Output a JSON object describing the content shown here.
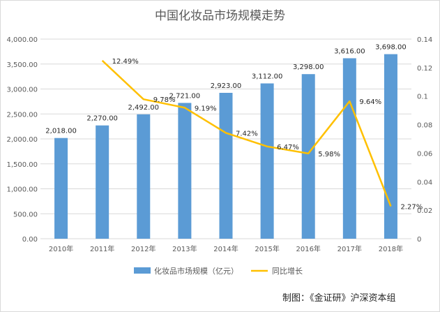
{
  "chart_data": {
    "type": "bar",
    "title": "中国化妆品市场规模走势",
    "categories": [
      "2010年",
      "2011年",
      "2012年",
      "2013年",
      "2014年",
      "2015年",
      "2016年",
      "2017年",
      "2018年"
    ],
    "series": [
      {
        "name": "化妆品市场规模（亿元）",
        "type": "bar",
        "axis": "left",
        "color": "#5b9bd5",
        "values": [
          2018.0,
          2270.0,
          2492.0,
          2721.0,
          2923.0,
          3112.0,
          3298.0,
          3616.0,
          3698.0
        ],
        "labels": [
          "2,018.00",
          "2,270.00",
          "2,492.00",
          "2,721.00",
          "2,923.00",
          "3,112.00",
          "3,298.00",
          "3,616.00",
          "3,698.00"
        ]
      },
      {
        "name": "同比增长",
        "type": "line",
        "axis": "right",
        "color": "#ffc000",
        "values": [
          null,
          0.1249,
          0.0978,
          0.0919,
          0.0742,
          0.0647,
          0.0598,
          0.0964,
          0.0227
        ],
        "labels": [
          "",
          "12.49%",
          "9.78%",
          "9.19%",
          "7.42%",
          "6.47%",
          "5.98%",
          "9.64%",
          "2.27%"
        ]
      }
    ],
    "y_left": {
      "ylim": [
        0,
        4000
      ],
      "ticks": [
        "0.00",
        "500.00",
        "1,000.00",
        "1,500.00",
        "2,000.00",
        "2,500.00",
        "3,000.00",
        "3,500.00",
        "4,000.00"
      ]
    },
    "y_right": {
      "ylim": [
        0,
        0.14
      ],
      "ticks": [
        "0",
        "0.02",
        "0.04",
        "0.06",
        "0.08",
        "0.1",
        "0.12",
        "0.14"
      ]
    },
    "grid": true,
    "legend": "bottom"
  },
  "credit": "制图：《金证研》沪深资本组"
}
